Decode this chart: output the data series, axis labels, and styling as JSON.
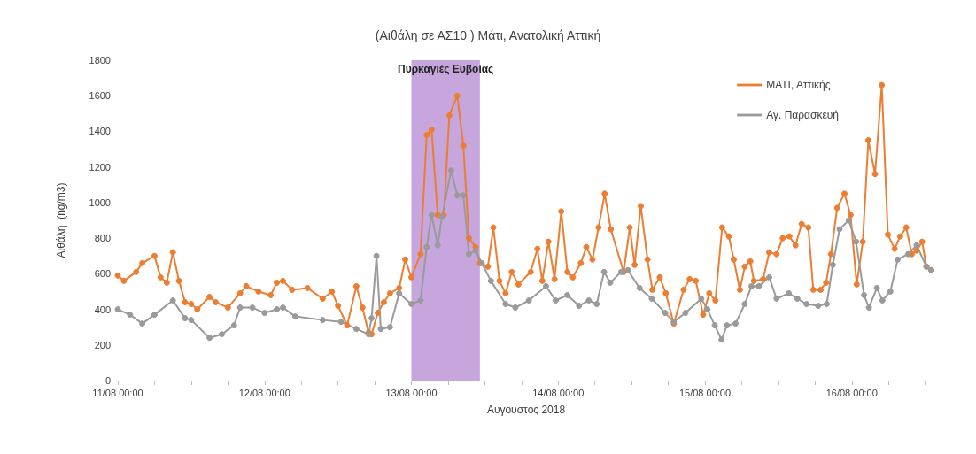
{
  "chart_data": {
    "type": "line",
    "title": "(Αιθάλη σε ΑΣ10 ) Μάτι, Ανατολική Αττική",
    "xlabel": "Αυγουστος 2018",
    "ylabel": "Αιθάλη  (ng/m3)",
    "xlim": [
      "2018-08-11T00:00",
      "2018-08-16T13:30"
    ],
    "xticks": [
      {
        "value": "2018-08-11T00:00",
        "label": "11/08 00:00"
      },
      {
        "value": "2018-08-11T06:00",
        "label": null
      },
      {
        "value": "2018-08-11T12:00",
        "label": null
      },
      {
        "value": "2018-08-11T18:00",
        "label": null
      },
      {
        "value": "2018-08-12T00:00",
        "label": "12/08 00:00"
      },
      {
        "value": "2018-08-12T06:00",
        "label": null
      },
      {
        "value": "2018-08-12T12:00",
        "label": null
      },
      {
        "value": "2018-08-12T18:00",
        "label": null
      },
      {
        "value": "2018-08-13T00:00",
        "label": "13/08 00:00"
      },
      {
        "value": "2018-08-13T06:00",
        "label": null
      },
      {
        "value": "2018-08-13T12:00",
        "label": null
      },
      {
        "value": "2018-08-13T18:00",
        "label": null
      },
      {
        "value": "2018-08-14T00:00",
        "label": "14/08 00:00"
      },
      {
        "value": "2018-08-14T06:00",
        "label": null
      },
      {
        "value": "2018-08-14T12:00",
        "label": null
      },
      {
        "value": "2018-08-14T18:00",
        "label": null
      },
      {
        "value": "2018-08-15T00:00",
        "label": "15/08 00:00"
      },
      {
        "value": "2018-08-15T06:00",
        "label": null
      },
      {
        "value": "2018-08-15T12:00",
        "label": null
      },
      {
        "value": "2018-08-15T18:00",
        "label": null
      },
      {
        "value": "2018-08-16T00:00",
        "label": "16/08 00:00"
      },
      {
        "value": "2018-08-16T06:00",
        "label": null
      },
      {
        "value": "2018-08-16T12:00",
        "label": null
      }
    ],
    "ylim": [
      0,
      1800
    ],
    "yticks": [
      0,
      200,
      400,
      600,
      800,
      1000,
      1200,
      1400,
      1600,
      1800
    ],
    "grid": false,
    "legend": "top right",
    "marker": "circle",
    "line_style": "solid",
    "bands": [
      {
        "axis": "x",
        "from": "2018-08-13T00:00",
        "to": "2018-08-13T11:12",
        "label": "Πυρκαγιές Ευβοίας",
        "color": "#c6a6dc"
      }
    ],
    "series": [
      {
        "name": "ΜΑΤΙ, Αττικής",
        "color": "#ed7d31",
        "x": [
          "2018-08-11T00:00",
          "2018-08-11T01:00",
          "2018-08-11T03:00",
          "2018-08-11T04:00",
          "2018-08-11T06:00",
          "2018-08-11T07:00",
          "2018-08-11T08:00",
          "2018-08-11T09:00",
          "2018-08-11T10:00",
          "2018-08-11T11:00",
          "2018-08-11T12:00",
          "2018-08-11T13:00",
          "2018-08-11T15:00",
          "2018-08-11T16:00",
          "2018-08-11T18:00",
          "2018-08-11T20:00",
          "2018-08-11T21:00",
          "2018-08-11T23:00",
          "2018-08-12T01:00",
          "2018-08-12T02:00",
          "2018-08-12T03:00",
          "2018-08-12T04:30",
          "2018-08-12T07:00",
          "2018-08-12T09:30",
          "2018-08-12T11:00",
          "2018-08-12T12:00",
          "2018-08-12T13:30",
          "2018-08-12T15:00",
          "2018-08-12T16:00",
          "2018-08-12T17:00",
          "2018-08-12T17:30",
          "2018-08-12T18:30",
          "2018-08-12T19:30",
          "2018-08-12T20:30",
          "2018-08-12T22:00",
          "2018-08-12T23:00",
          "2018-08-13T00:00",
          "2018-08-13T01:30",
          "2018-08-13T02:30",
          "2018-08-13T03:18",
          "2018-08-13T04:18",
          "2018-08-13T05:18",
          "2018-08-13T06:12",
          "2018-08-13T07:30",
          "2018-08-13T08:30",
          "2018-08-13T09:24",
          "2018-08-13T10:30",
          "2018-08-13T11:12",
          "2018-08-13T12:30",
          "2018-08-13T13:24",
          "2018-08-13T14:24",
          "2018-08-13T15:24",
          "2018-08-13T16:24",
          "2018-08-13T17:30",
          "2018-08-13T19:30",
          "2018-08-13T20:36",
          "2018-08-13T21:24",
          "2018-08-13T22:24",
          "2018-08-13T23:24",
          "2018-08-14T00:30",
          "2018-08-14T01:30",
          "2018-08-14T02:24",
          "2018-08-14T03:42",
          "2018-08-14T04:36",
          "2018-08-14T05:36",
          "2018-08-14T06:36",
          "2018-08-14T07:36",
          "2018-08-14T08:36",
          "2018-08-14T10:42",
          "2018-08-14T11:42",
          "2018-08-14T12:30",
          "2018-08-14T13:30",
          "2018-08-14T14:36",
          "2018-08-14T15:24",
          "2018-08-14T16:36",
          "2018-08-14T17:36",
          "2018-08-14T18:54",
          "2018-08-14T20:30",
          "2018-08-14T21:30",
          "2018-08-14T22:30",
          "2018-08-14T23:42",
          "2018-08-15T00:42",
          "2018-08-15T01:42",
          "2018-08-15T02:48",
          "2018-08-15T03:54",
          "2018-08-15T04:42",
          "2018-08-15T05:42",
          "2018-08-15T06:30",
          "2018-08-15T07:24",
          "2018-08-15T08:00",
          "2018-08-15T09:30",
          "2018-08-15T10:30",
          "2018-08-15T11:42",
          "2018-08-15T12:42",
          "2018-08-15T13:48",
          "2018-08-15T14:48",
          "2018-08-15T15:48",
          "2018-08-15T16:54",
          "2018-08-15T17:42",
          "2018-08-15T18:54",
          "2018-08-15T19:48",
          "2018-08-15T20:36",
          "2018-08-15T21:36",
          "2018-08-15T22:48",
          "2018-08-15T23:48",
          "2018-08-16T00:48",
          "2018-08-16T01:48",
          "2018-08-16T02:42",
          "2018-08-16T03:48",
          "2018-08-16T04:54",
          "2018-08-16T05:54",
          "2018-08-16T07:00",
          "2018-08-16T07:54",
          "2018-08-16T08:54",
          "2018-08-16T09:48",
          "2018-08-16T10:36",
          "2018-08-16T11:30",
          "2018-08-16T12:12",
          "2018-08-16T13:00"
        ],
        "values": [
          590,
          560,
          610,
          660,
          700,
          580,
          550,
          720,
          560,
          440,
          430,
          400,
          470,
          440,
          410,
          490,
          530,
          500,
          480,
          550,
          560,
          510,
          520,
          460,
          500,
          420,
          310,
          530,
          410,
          270,
          260,
          380,
          440,
          490,
          520,
          680,
          580,
          710,
          1380,
          1410,
          930,
          930,
          1490,
          1600,
          1320,
          800,
          750,
          660,
          640,
          860,
          560,
          490,
          610,
          540,
          610,
          740,
          560,
          780,
          570,
          950,
          610,
          580,
          660,
          750,
          680,
          860,
          1050,
          850,
          610,
          860,
          650,
          980,
          680,
          510,
          580,
          490,
          320,
          510,
          570,
          560,
          370,
          490,
          450,
          860,
          810,
          680,
          510,
          640,
          670,
          560,
          570,
          720,
          710,
          800,
          810,
          760,
          880,
          860,
          510,
          510,
          550,
          710,
          970,
          1050,
          930,
          540,
          780,
          1350,
          1160,
          1660,
          820,
          740,
          810,
          860,
          710,
          730,
          780,
          640,
          620
        ]
      },
      {
        "name": "Αγ. Παρασκευή",
        "color": "#9a9a9a",
        "x": [
          "2018-08-11T00:00",
          "2018-08-11T02:00",
          "2018-08-11T04:00",
          "2018-08-11T06:00",
          "2018-08-11T09:00",
          "2018-08-11T11:00",
          "2018-08-11T12:00",
          "2018-08-11T15:00",
          "2018-08-11T17:00",
          "2018-08-11T19:00",
          "2018-08-11T20:00",
          "2018-08-11T22:00",
          "2018-08-12T00:00",
          "2018-08-12T02:00",
          "2018-08-12T03:00",
          "2018-08-12T05:00",
          "2018-08-12T09:30",
          "2018-08-12T12:30",
          "2018-08-12T15:00",
          "2018-08-12T17:00",
          "2018-08-12T17:30",
          "2018-08-12T18:18",
          "2018-08-12T19:00",
          "2018-08-12T20:30",
          "2018-08-12T22:00",
          "2018-08-13T00:00",
          "2018-08-13T01:30",
          "2018-08-13T02:30",
          "2018-08-13T03:18",
          "2018-08-13T04:18",
          "2018-08-13T05:00",
          "2018-08-13T06:30",
          "2018-08-13T07:30",
          "2018-08-13T08:30",
          "2018-08-13T09:24",
          "2018-08-13T10:30",
          "2018-08-13T11:30",
          "2018-08-13T13:00",
          "2018-08-13T15:24",
          "2018-08-13T17:00",
          "2018-08-13T19:12",
          "2018-08-13T22:00",
          "2018-08-13T23:36",
          "2018-08-14T01:30",
          "2018-08-14T03:24",
          "2018-08-14T05:00",
          "2018-08-14T06:18",
          "2018-08-14T07:30",
          "2018-08-14T08:30",
          "2018-08-14T10:18",
          "2018-08-14T11:24",
          "2018-08-14T13:18",
          "2018-08-14T15:18",
          "2018-08-14T17:30",
          "2018-08-14T18:54",
          "2018-08-14T20:48",
          "2018-08-14T23:24",
          "2018-08-15T00:24",
          "2018-08-15T01:36",
          "2018-08-15T02:42",
          "2018-08-15T03:36",
          "2018-08-15T05:00",
          "2018-08-15T06:30",
          "2018-08-15T07:36",
          "2018-08-15T08:48",
          "2018-08-15T10:30",
          "2018-08-15T11:42",
          "2018-08-15T13:42",
          "2018-08-15T15:06",
          "2018-08-15T16:36",
          "2018-08-15T18:30",
          "2018-08-15T19:54",
          "2018-08-15T20:54",
          "2018-08-15T22:00",
          "2018-08-15T23:30",
          "2018-08-16T00:42",
          "2018-08-16T02:00",
          "2018-08-16T02:48",
          "2018-08-16T04:06",
          "2018-08-16T05:00",
          "2018-08-16T06:18",
          "2018-08-16T07:30",
          "2018-08-16T09:12",
          "2018-08-16T10:36",
          "2018-08-16T12:12",
          "2018-08-16T13:00"
        ],
        "values": [
          400,
          370,
          320,
          370,
          450,
          350,
          340,
          240,
          260,
          310,
          410,
          410,
          380,
          400,
          410,
          360,
          340,
          330,
          290,
          260,
          350,
          700,
          290,
          300,
          490,
          430,
          450,
          750,
          930,
          760,
          920,
          1180,
          1040,
          1040,
          710,
          730,
          660,
          560,
          430,
          410,
          450,
          530,
          450,
          480,
          420,
          450,
          430,
          610,
          550,
          610,
          620,
          520,
          460,
          380,
          330,
          380,
          460,
          400,
          310,
          230,
          310,
          320,
          430,
          530,
          530,
          580,
          460,
          490,
          460,
          430,
          420,
          430,
          650,
          850,
          900,
          780,
          480,
          410,
          520,
          450,
          500,
          680,
          710,
          760,
          640,
          620
        ]
      }
    ]
  }
}
